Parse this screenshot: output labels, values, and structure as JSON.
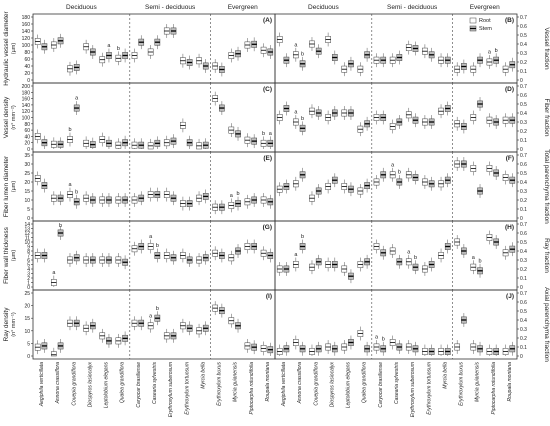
{
  "chart_data": {
    "type": "box",
    "groups": [
      {
        "label": "Deciduous",
        "species": [
          "Aegiphila verticillata",
          "Annona crassiflora",
          "Couepia grandiflora",
          "Diospyros lasiocalyx",
          "Leptolobium elegans",
          "Qualea grandiflora"
        ]
      },
      {
        "label": "Semi - deciduous",
        "species": [
          "Caryocar brasiliense",
          "Casearia sylvestris",
          "Erythroxylum suberosum",
          "Erythroxylum tortuosum",
          "Myrcia bella"
        ]
      },
      {
        "label": "Evergreen",
        "species": [
          "Erythroxylum buxus",
          "Myrcia guianensis",
          "Piptocarpha rotundifolia",
          "Roupala montana"
        ]
      }
    ],
    "legend": [
      {
        "name": "Root",
        "color": "#ffffff"
      },
      {
        "name": "Stem",
        "color": "#555555"
      }
    ],
    "panels": [
      {
        "label": "(A)",
        "ylabel": "Hydraulic vessel diameter",
        "yunit": "(µm)",
        "ylim": [
          0,
          180
        ],
        "ticks": [
          0,
          20,
          40,
          60,
          80,
          100,
          120,
          140,
          160,
          180
        ],
        "side": "left",
        "root": [
          110,
          100,
          32,
          95,
          58,
          62,
          70,
          80,
          140,
          55,
          55,
          40,
          70,
          100,
          85
        ],
        "stem": [
          95,
          112,
          36,
          80,
          70,
          70,
          108,
          108,
          140,
          50,
          40,
          30,
          75,
          102,
          80
        ],
        "annotations": [
          {
            "species": 4,
            "series": "stem",
            "text": "a"
          },
          {
            "species": 5,
            "series": "root",
            "text": "b"
          }
        ]
      },
      {
        "label": "(B)",
        "ylabel": "Vessel fraction",
        "yunit": "",
        "ylim": [
          0,
          0.7
        ],
        "ticks": [
          0,
          0.1,
          0.2,
          0.3,
          0.4,
          0.5,
          0.6,
          0.7
        ],
        "side": "right",
        "root": [
          0.45,
          0.28,
          0.4,
          0.45,
          0.12,
          0.12,
          0.22,
          0.22,
          0.36,
          0.32,
          0.22,
          0.12,
          0.12,
          0.2,
          0.12
        ],
        "stem": [
          0.22,
          0.18,
          0.32,
          0.25,
          0.18,
          0.28,
          0.22,
          0.25,
          0.35,
          0.28,
          0.22,
          0.15,
          0.22,
          0.22,
          0.17
        ],
        "annotations": [
          {
            "species": 1,
            "series": "root",
            "text": "a"
          },
          {
            "species": 1,
            "series": "stem",
            "text": "b"
          },
          {
            "species": 13,
            "series": "root",
            "text": "a"
          },
          {
            "species": 13,
            "series": "stem",
            "text": "b"
          }
        ]
      },
      {
        "label": "(C)",
        "ylabel": "Vessel density",
        "yunit": "(n° mm⁻²)",
        "ylim": [
          0,
          200
        ],
        "ticks": [
          0,
          20,
          40,
          60,
          80,
          100,
          120,
          140,
          160,
          180,
          200
        ],
        "side": "left",
        "root": [
          40,
          15,
          30,
          18,
          30,
          12,
          12,
          10,
          20,
          75,
          10,
          160,
          60,
          28,
          18
        ],
        "stem": [
          20,
          15,
          130,
          14,
          18,
          20,
          12,
          18,
          25,
          20,
          12,
          130,
          48,
          25,
          18
        ],
        "annotations": [
          {
            "species": 2,
            "series": "root",
            "text": "b"
          },
          {
            "species": 2,
            "series": "stem",
            "text": "a"
          },
          {
            "species": 14,
            "series": "root",
            "text": "b"
          },
          {
            "species": 14,
            "series": "stem",
            "text": "a"
          }
        ]
      },
      {
        "label": "(D)",
        "ylabel": "Fiber fraction",
        "yunit": "",
        "ylim": [
          0,
          0.7
        ],
        "ticks": [
          0,
          0.1,
          0.2,
          0.3,
          0.4,
          0.5,
          0.6,
          0.7
        ],
        "side": "right",
        "root": [
          0.35,
          0.3,
          0.42,
          0.35,
          0.4,
          0.22,
          0.35,
          0.25,
          0.38,
          0.3,
          0.42,
          0.28,
          0.35,
          0.32,
          0.32
        ],
        "stem": [
          0.45,
          0.23,
          0.4,
          0.4,
          0.4,
          0.28,
          0.35,
          0.3,
          0.32,
          0.3,
          0.45,
          0.25,
          0.5,
          0.3,
          0.32
        ],
        "annotations": [
          {
            "species": 1,
            "series": "root",
            "text": "a"
          },
          {
            "species": 1,
            "series": "stem",
            "text": "b"
          }
        ]
      },
      {
        "label": "(E)",
        "ylabel": "Fiber lumen diameter",
        "yunit": "(µm)",
        "ylim": [
          0,
          35
        ],
        "ticks": [
          0,
          5,
          10,
          15,
          20,
          25,
          30,
          35
        ],
        "side": "left",
        "root": [
          22,
          11,
          13,
          11,
          10,
          10,
          10,
          13,
          13,
          8,
          11,
          6,
          7,
          9,
          10
        ],
        "stem": [
          18,
          11,
          9,
          10,
          10,
          10,
          11,
          13,
          11,
          8,
          12,
          6,
          8,
          10,
          9
        ],
        "annotations": [
          {
            "species": 2,
            "series": "root",
            "text": "a"
          },
          {
            "species": 2,
            "series": "stem",
            "text": "b"
          },
          {
            "species": 12,
            "series": "root",
            "text": "a"
          },
          {
            "species": 12,
            "series": "stem",
            "text": "b"
          }
        ]
      },
      {
        "label": "(F)",
        "ylabel": "Total parenchyma fraction",
        "yunit": "",
        "ylim": [
          0,
          0.7
        ],
        "ticks": [
          0,
          0.1,
          0.2,
          0.3,
          0.4,
          0.5,
          0.6,
          0.7
        ],
        "side": "right",
        "root": [
          0.32,
          0.38,
          0.22,
          0.35,
          0.35,
          0.3,
          0.4,
          0.48,
          0.48,
          0.4,
          0.38,
          0.6,
          0.55,
          0.55,
          0.45
        ],
        "stem": [
          0.35,
          0.48,
          0.3,
          0.42,
          0.32,
          0.36,
          0.48,
          0.4,
          0.45,
          0.38,
          0.42,
          0.6,
          0.3,
          0.5,
          0.42
        ],
        "annotations": [
          {
            "species": 7,
            "series": "root",
            "text": "a"
          },
          {
            "species": 7,
            "series": "stem",
            "text": "b"
          }
        ]
      },
      {
        "label": "(G)",
        "ylabel": "Fiber wall thickness",
        "yunit": "(µm)",
        "ylim": [
          0,
          14
        ],
        "ticks": [
          0,
          1,
          2,
          3,
          4,
          5,
          6,
          7,
          8,
          9,
          10,
          11,
          12,
          13,
          14
        ],
        "side": "left",
        "root": [
          7,
          1,
          6,
          6,
          6,
          6,
          8.5,
          9,
          7,
          7,
          6,
          7.5,
          6.5,
          9,
          7.5
        ],
        "stem": [
          7,
          12,
          6.5,
          6,
          6,
          5.5,
          9,
          7,
          6.5,
          6,
          6.5,
          7,
          8,
          9,
          7
        ],
        "annotations": [
          {
            "species": 1,
            "series": "root",
            "text": "a"
          },
          {
            "species": 1,
            "series": "stem",
            "text": "b"
          },
          {
            "species": 7,
            "series": "root",
            "text": "a"
          },
          {
            "species": 7,
            "series": "stem",
            "text": "b"
          }
        ]
      },
      {
        "label": "(H)",
        "ylabel": "Ray fraction",
        "yunit": "",
        "ylim": [
          0,
          0.7
        ],
        "ticks": [
          0,
          0.1,
          0.2,
          0.3,
          0.4,
          0.5,
          0.6,
          0.7
        ],
        "side": "right",
        "root": [
          0.2,
          0.25,
          0.22,
          0.25,
          0.2,
          0.25,
          0.45,
          0.4,
          0.28,
          0.2,
          0.35,
          0.5,
          0.22,
          0.55,
          0.38
        ],
        "stem": [
          0.2,
          0.45,
          0.28,
          0.25,
          0.12,
          0.28,
          0.38,
          0.28,
          0.22,
          0.25,
          0.45,
          0.4,
          0.18,
          0.5,
          0.42
        ],
        "annotations": [
          {
            "species": 1,
            "series": "root",
            "text": "a"
          },
          {
            "species": 1,
            "series": "stem",
            "text": "b"
          },
          {
            "species": 8,
            "series": "root",
            "text": "a"
          },
          {
            "species": 8,
            "series": "stem",
            "text": "b"
          },
          {
            "species": 12,
            "series": "root",
            "text": "a"
          },
          {
            "species": 12,
            "series": "stem",
            "text": "b"
          }
        ]
      },
      {
        "label": "(I)",
        "ylabel": "Ray density",
        "yunit": "(n° mm⁻¹)",
        "ylim": [
          0,
          25
        ],
        "ticks": [
          0,
          5,
          10,
          15,
          20,
          25
        ],
        "side": "left",
        "root": [
          3.5,
          0.5,
          13,
          11,
          8,
          6,
          13,
          12,
          8,
          12,
          10,
          19,
          14,
          4,
          3
        ],
        "stem": [
          4,
          4,
          13,
          12,
          6,
          7,
          13,
          15,
          8,
          11,
          11,
          18,
          12,
          3.5,
          2.5
        ],
        "annotations": [
          {
            "species": 7,
            "series": "root",
            "text": "a"
          },
          {
            "species": 7,
            "series": "stem",
            "text": "b"
          }
        ]
      },
      {
        "label": "(J)",
        "ylabel": "Axial parenchyma fraction",
        "yunit": "",
        "ylim": [
          0,
          0.7
        ],
        "ticks": [
          0,
          0.1,
          0.2,
          0.3,
          0.4,
          0.5,
          0.6,
          0.7
        ],
        "side": "right",
        "root": [
          0.05,
          0.15,
          0.05,
          0.1,
          0.1,
          0.25,
          0.1,
          0.15,
          0.1,
          0.05,
          0.05,
          0.1,
          0.1,
          0.05,
          0.05
        ],
        "stem": [
          0.08,
          0.08,
          0.08,
          0.08,
          0.15,
          0.08,
          0.08,
          0.1,
          0.08,
          0.05,
          0.05,
          0.4,
          0.08,
          0.05,
          0.08
        ],
        "annotations": [
          {
            "species": 6,
            "series": "root",
            "text": "a"
          },
          {
            "species": 6,
            "series": "stem",
            "text": "b"
          }
        ]
      }
    ]
  }
}
